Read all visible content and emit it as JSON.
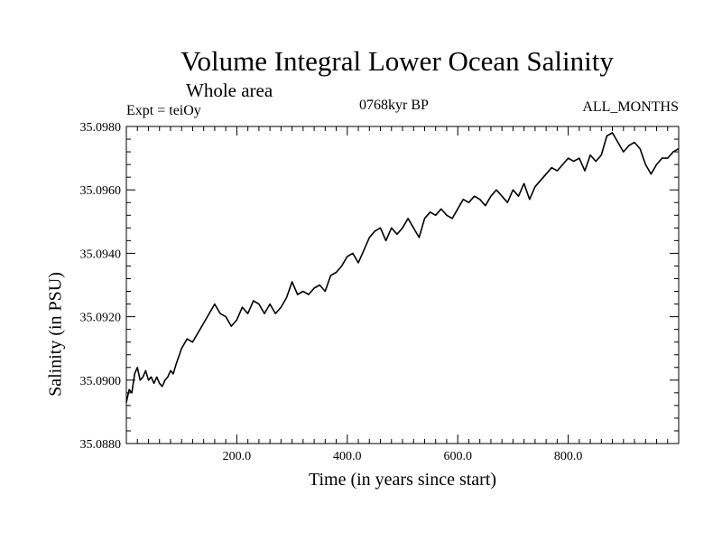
{
  "chart_data": {
    "type": "line",
    "title": "Volume Integral Lower Ocean Salinity",
    "subtitle": "Whole area",
    "annotations": {
      "experiment": "Expt = teiOy",
      "period": "0768kyr BP",
      "months": "ALL_MONTHS"
    },
    "xlabel": "Time (in years since start)",
    "ylabel": "Salinity (in PSU)",
    "xlim": [
      0,
      1000
    ],
    "ylim": [
      35.088,
      35.098
    ],
    "xticks": [
      200,
      400,
      600,
      800
    ],
    "xtick_labels": [
      "200.0",
      "400.0",
      "600.0",
      "800.0"
    ],
    "yticks": [
      35.088,
      35.09,
      35.092,
      35.094,
      35.096,
      35.098
    ],
    "ytick_labels": [
      "35.0880",
      "35.0900",
      "35.0920",
      "35.0940",
      "35.0960",
      "35.0980"
    ],
    "series": [
      {
        "name": "Salinity",
        "color": "#000000",
        "x": [
          0,
          5,
          10,
          15,
          20,
          25,
          30,
          35,
          40,
          45,
          50,
          55,
          60,
          65,
          70,
          75,
          80,
          85,
          90,
          100,
          110,
          120,
          130,
          140,
          150,
          160,
          170,
          180,
          190,
          200,
          210,
          220,
          230,
          240,
          250,
          260,
          270,
          280,
          290,
          300,
          310,
          320,
          330,
          340,
          350,
          360,
          370,
          380,
          390,
          400,
          410,
          420,
          430,
          440,
          450,
          460,
          470,
          480,
          490,
          500,
          510,
          520,
          530,
          540,
          550,
          560,
          570,
          580,
          590,
          600,
          610,
          620,
          630,
          640,
          650,
          660,
          670,
          680,
          690,
          700,
          710,
          720,
          730,
          740,
          750,
          760,
          770,
          780,
          790,
          800,
          810,
          820,
          830,
          840,
          850,
          860,
          870,
          880,
          890,
          900,
          910,
          920,
          930,
          940,
          950,
          960,
          970,
          980,
          990,
          1000
        ],
        "values": [
          35.0893,
          35.0897,
          35.0896,
          35.0902,
          35.0904,
          35.09,
          35.0901,
          35.0903,
          35.09,
          35.0901,
          35.0899,
          35.0901,
          35.0899,
          35.0898,
          35.09,
          35.0901,
          35.0903,
          35.0902,
          35.0905,
          35.091,
          35.0913,
          35.0912,
          35.0915,
          35.0918,
          35.0921,
          35.0924,
          35.0921,
          35.092,
          35.0917,
          35.0919,
          35.0923,
          35.0921,
          35.0925,
          35.0924,
          35.0921,
          35.0924,
          35.0921,
          35.0923,
          35.0926,
          35.0931,
          35.0927,
          35.0928,
          35.0927,
          35.0929,
          35.093,
          35.0928,
          35.0933,
          35.0934,
          35.0936,
          35.0939,
          35.094,
          35.0937,
          35.0941,
          35.0945,
          35.0947,
          35.0948,
          35.0944,
          35.0948,
          35.0946,
          35.0948,
          35.0951,
          35.0948,
          35.0945,
          35.0951,
          35.0953,
          35.0952,
          35.0954,
          35.0952,
          35.0951,
          35.0954,
          35.0957,
          35.0956,
          35.0958,
          35.0957,
          35.0955,
          35.0958,
          35.096,
          35.0958,
          35.0956,
          35.096,
          35.0958,
          35.0962,
          35.0957,
          35.0961,
          35.0963,
          35.0965,
          35.0967,
          35.0966,
          35.0968,
          35.097,
          35.0969,
          35.097,
          35.0966,
          35.0971,
          35.0969,
          35.0971,
          35.0977,
          35.0978,
          35.0975,
          35.0972,
          35.0974,
          35.0975,
          35.0973,
          35.0968,
          35.0965,
          35.0968,
          35.097,
          35.097,
          35.0972,
          35.0973
        ]
      }
    ]
  }
}
